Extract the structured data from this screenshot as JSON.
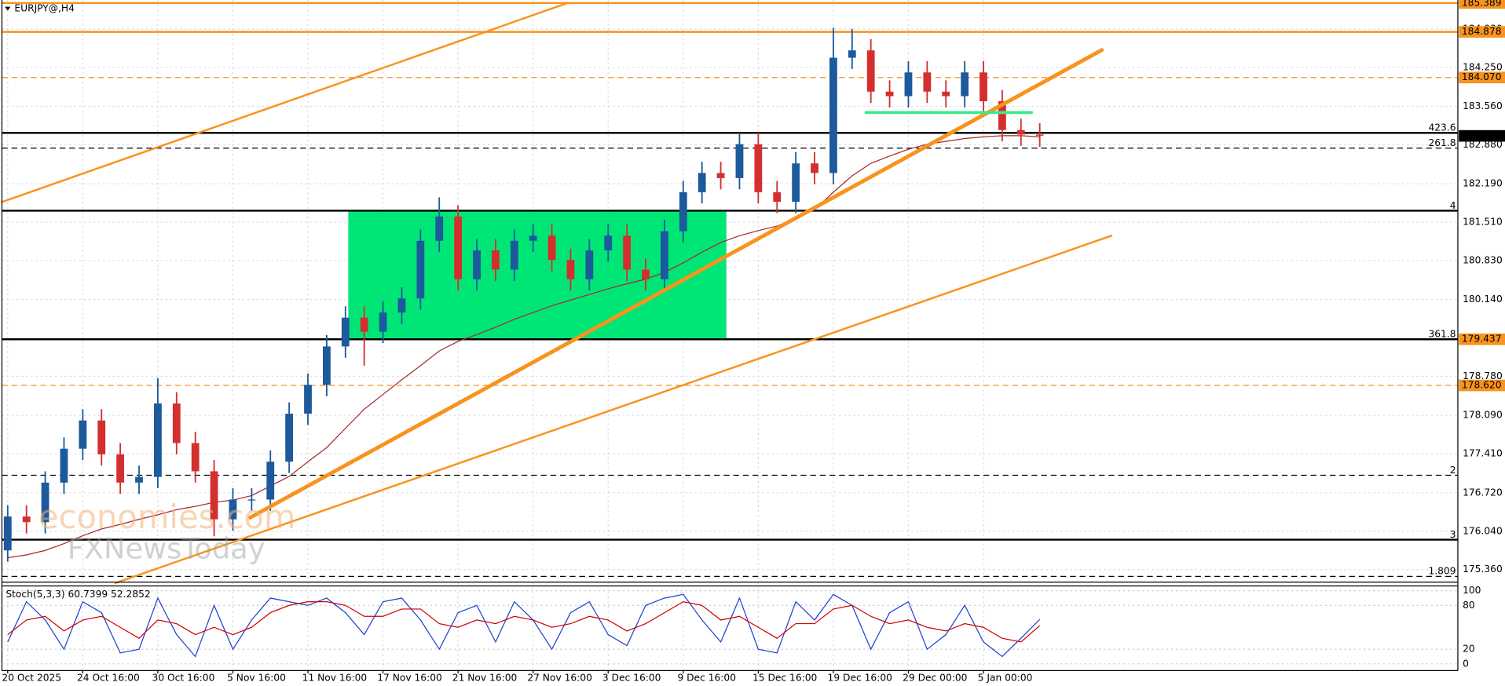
{
  "chart_data": [
    {
      "type": "candlestick",
      "title": "EURJPY@,H4",
      "categories": [
        "20 Oct 2025",
        null,
        null,
        null,
        "24 Oct 16:00",
        null,
        null,
        null,
        "30 Oct 16:00",
        null,
        null,
        null,
        "5 Nov 16:00",
        null,
        null,
        null,
        "11 Nov 16:00",
        null,
        null,
        null,
        "17 Nov 16:00",
        null,
        null,
        null,
        "21 Nov 16:00",
        null,
        null,
        null,
        "27 Nov 16:00",
        null,
        null,
        null,
        "3 Dec 16:00",
        null,
        null,
        null,
        "9 Dec 16:00",
        null,
        null,
        null,
        "15 Dec 16:00",
        null,
        null,
        null,
        "19 Dec 16:00",
        null,
        null,
        null,
        "29 Dec 00:00",
        null,
        null,
        null,
        "5 Jan 00:00",
        null,
        null,
        null
      ],
      "open": [
        175.7,
        176.3,
        176.2,
        176.9,
        177.5,
        178.0,
        177.4,
        176.9,
        177.0,
        178.3,
        177.6,
        177.1,
        176.25,
        176.6,
        176.6,
        177.27,
        178.12,
        178.63,
        179.31,
        179.82,
        179.57,
        179.91,
        180.16,
        181.18,
        181.61,
        180.5,
        181.01,
        180.67,
        181.18,
        181.27,
        180.84,
        180.5,
        181.01,
        181.27,
        180.67,
        180.5,
        181.35,
        182.04,
        182.38,
        182.29,
        182.89,
        182.04,
        181.87,
        182.55,
        182.38,
        184.42,
        184.55,
        183.82,
        183.74,
        184.16,
        183.82,
        183.74,
        184.16,
        183.65,
        183.14,
        183.06
      ],
      "high": [
        176.5,
        176.5,
        177.1,
        177.7,
        178.2,
        178.2,
        177.6,
        177.2,
        178.75,
        178.5,
        177.8,
        177.3,
        176.8,
        176.8,
        177.47,
        178.32,
        178.83,
        179.51,
        180.02,
        180.02,
        180.11,
        180.36,
        181.38,
        181.95,
        181.81,
        181.21,
        181.21,
        181.38,
        181.47,
        181.47,
        181.04,
        181.21,
        181.47,
        181.47,
        180.87,
        181.55,
        182.24,
        182.58,
        182.58,
        183.09,
        183.09,
        182.24,
        182.75,
        182.75,
        184.95,
        184.93,
        184.75,
        184.02,
        184.36,
        184.36,
        184.02,
        184.36,
        184.36,
        183.85,
        183.34,
        183.26
      ],
      "low": [
        175.5,
        176.0,
        176.0,
        176.7,
        177.3,
        177.2,
        176.7,
        176.7,
        176.8,
        177.4,
        176.9,
        175.95,
        176.05,
        176.4,
        176.4,
        177.07,
        177.92,
        178.43,
        179.11,
        178.97,
        179.37,
        179.71,
        179.96,
        180.98,
        180.3,
        180.3,
        180.47,
        180.47,
        180.98,
        180.64,
        180.3,
        180.3,
        180.81,
        180.47,
        180.3,
        180.3,
        181.15,
        181.84,
        182.09,
        182.09,
        181.84,
        181.67,
        181.67,
        182.18,
        182.18,
        184.22,
        183.62,
        183.54,
        183.54,
        183.62,
        183.54,
        183.54,
        183.45,
        182.94,
        182.86,
        182.84
      ],
      "close": [
        176.3,
        176.2,
        176.9,
        177.5,
        178.0,
        177.4,
        176.9,
        177.0,
        178.3,
        177.6,
        177.1,
        176.25,
        176.6,
        176.6,
        177.27,
        178.12,
        178.63,
        179.31,
        179.82,
        179.57,
        179.91,
        180.16,
        181.18,
        181.61,
        180.5,
        181.01,
        180.67,
        181.18,
        181.27,
        180.84,
        180.5,
        181.01,
        181.27,
        180.67,
        180.5,
        181.35,
        182.04,
        182.38,
        182.29,
        182.89,
        182.04,
        181.87,
        182.55,
        182.38,
        184.42,
        184.55,
        183.82,
        183.74,
        184.16,
        183.82,
        183.74,
        184.16,
        183.65,
        183.14,
        183.06,
        183.04
      ],
      "up_color": "#1c5a9c",
      "down_color": "#d32f2f",
      "ma": {
        "color": "#a52a2a",
        "values": [
          175.57,
          175.62,
          175.7,
          175.82,
          175.96,
          176.08,
          176.16,
          176.25,
          176.33,
          176.42,
          176.48,
          176.55,
          176.59,
          176.67,
          176.84,
          177.01,
          177.27,
          177.52,
          177.86,
          178.2,
          178.46,
          178.72,
          178.97,
          179.23,
          179.4,
          179.52,
          179.65,
          179.79,
          179.91,
          180.03,
          180.13,
          180.23,
          180.33,
          180.42,
          180.5,
          180.62,
          180.79,
          180.98,
          181.15,
          181.27,
          181.36,
          181.44,
          181.58,
          181.73,
          182.04,
          182.33,
          182.55,
          182.68,
          182.8,
          182.89,
          182.94,
          182.99,
          183.02,
          183.04,
          183.04,
          183.02
        ]
      },
      "ylim": [
        175.139,
        185.442
      ],
      "yticks": [
        {
          "value": 184.93,
          "label": "184.930"
        },
        {
          "value": 184.25,
          "label": "184.250"
        },
        {
          "value": 183.56,
          "label": "183.560"
        },
        {
          "value": 182.88,
          "label": "182.880"
        },
        {
          "value": 182.19,
          "label": "182.190"
        },
        {
          "value": 181.51,
          "label": "181.510"
        },
        {
          "value": 180.83,
          "label": "180.830"
        },
        {
          "value": 180.14,
          "label": "180.140"
        },
        {
          "value": 178.78,
          "label": "178.780"
        },
        {
          "value": 178.09,
          "label": "178.090"
        },
        {
          "value": 177.41,
          "label": "177.410"
        },
        {
          "value": 176.72,
          "label": "176.720"
        },
        {
          "value": 176.04,
          "label": "176.040"
        },
        {
          "value": 175.36,
          "label": "175.360"
        }
      ],
      "grid": true,
      "levels": [
        {
          "price": 185.389,
          "color": "#f7931e",
          "dashed": false,
          "box": "#f7931e"
        },
        {
          "price": 184.878,
          "color": "#f7931e",
          "dashed": false,
          "box": "#f7931e"
        },
        {
          "price": {
            "value": 184.07,
            "label": "184.070"
          },
          "color": "#f7931e",
          "dashed": true,
          "box": "#f7931e"
        },
        {
          "price": 183.09,
          "tag": "423.6",
          "color": "#000000",
          "dashed": false
        },
        {
          "price": 182.82,
          "tag": "261.8",
          "color": "#000000",
          "dashed": true
        },
        {
          "price": 181.713,
          "tag": "4",
          "color": "#000000",
          "dashed": false
        },
        {
          "price": 179.437,
          "tag": "361.8",
          "color": "#000000",
          "dashed": false,
          "box": "#f7931e"
        },
        {
          "price": {
            "value": 178.62,
            "label": "178.620"
          },
          "color": "#f7931e",
          "dashed": true,
          "box": "#f7931e"
        },
        {
          "price": 177.03,
          "tag": "2",
          "color": "#000000",
          "dashed": true
        },
        {
          "price": 175.89,
          "tag": "3",
          "color": "#000000",
          "dashed": false
        },
        {
          "price": 175.24,
          "tag": "1.809",
          "color": "#000000",
          "dashed": true
        }
      ],
      "last_price": 183.037,
      "last_price_color": "#000000",
      "zones": [
        {
          "x": [
            18.15,
            38.3
          ],
          "y": [
            179.437,
            181.713
          ],
          "color": "#00e676"
        }
      ],
      "trendlines": [
        {
          "x": [
            -0.31,
            29.85
          ],
          "y": [
            181.866,
            185.391
          ],
          "color": "#f7931e",
          "width": 2
        },
        {
          "x": [
            12.92,
            58.31
          ],
          "y": [
            176.28,
            184.557
          ],
          "color": "#f7931e",
          "width": 4
        },
        {
          "x": [
            5.74,
            58.82
          ],
          "y": [
            175.122,
            181.27
          ],
          "color": "#f7931e",
          "width": 2
        },
        {
          "x": [
            45.74,
            54.56
          ],
          "y": [
            183.45,
            183.45
          ],
          "color": "#3ee88a",
          "width": 3
        }
      ],
      "watermark": [
        "economies.com",
        "FXNewsToday"
      ]
    },
    {
      "type": "line",
      "title": "Stoch(5,3,3) 60.7399 52.2852",
      "ylim": [
        0,
        100
      ],
      "yticks": [
        100,
        80,
        20,
        0
      ],
      "series": [
        {
          "color": "#1e3fd0",
          "values": [
            30,
            85,
            60,
            20,
            85,
            70,
            15,
            20,
            90,
            40,
            10,
            80,
            20,
            60,
            90,
            85,
            80,
            90,
            70,
            40,
            85,
            90,
            60,
            20,
            70,
            80,
            30,
            85,
            60,
            20,
            70,
            85,
            40,
            25,
            80,
            90,
            95,
            60,
            30,
            90,
            20,
            15,
            85,
            60,
            95,
            80,
            20,
            70,
            85,
            20,
            40,
            80,
            30,
            10,
            35,
            60.74
          ]
        },
        {
          "color": "#d00000",
          "values": [
            40,
            60,
            65,
            45,
            60,
            65,
            50,
            35,
            60,
            55,
            40,
            50,
            40,
            50,
            70,
            80,
            85,
            85,
            80,
            65,
            65,
            75,
            75,
            55,
            50,
            60,
            55,
            65,
            60,
            50,
            55,
            65,
            60,
            45,
            55,
            70,
            85,
            80,
            60,
            65,
            50,
            35,
            55,
            55,
            75,
            80,
            65,
            55,
            60,
            50,
            45,
            55,
            50,
            35,
            30,
            52.29
          ]
        }
      ]
    }
  ]
}
